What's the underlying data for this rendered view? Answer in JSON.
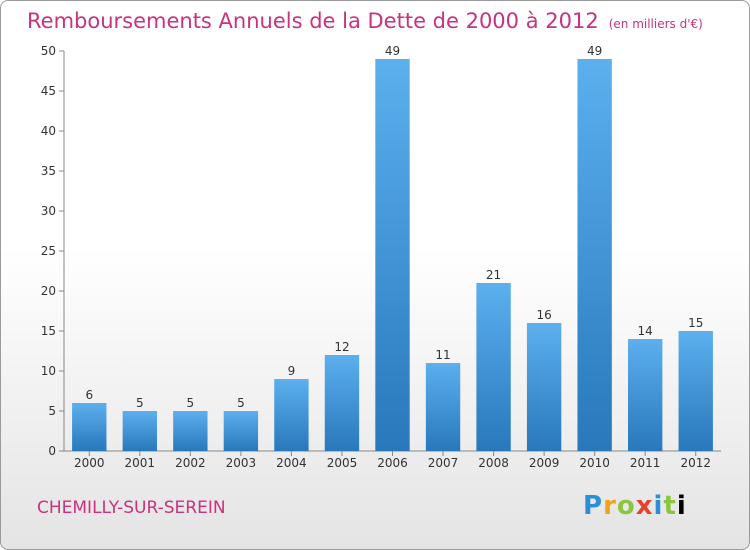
{
  "page": {
    "title": "Remboursements Annuels de la Dette de 2000 à 2012",
    "subtitle": "(en milliers d'€)",
    "city": "CHEMILLY-SUR-SEREIN",
    "logo": "Proxiti"
  },
  "chart_data": {
    "type": "bar",
    "title": "Remboursements Annuels de la Dette de 2000 à 2012",
    "subtitle": "(en milliers d'€)",
    "xlabel": "",
    "ylabel": "",
    "categories": [
      "2000",
      "2001",
      "2002",
      "2003",
      "2004",
      "2005",
      "2006",
      "2007",
      "2008",
      "2009",
      "2010",
      "2011",
      "2012"
    ],
    "values": [
      6,
      5,
      5,
      5,
      9,
      12,
      49,
      11,
      21,
      16,
      49,
      14,
      15
    ],
    "ylim": [
      0,
      50
    ],
    "yticks": [
      0,
      5,
      10,
      15,
      20,
      25,
      30,
      35,
      40,
      45,
      50
    ],
    "grid": false,
    "legend": "none",
    "colors": {
      "bar_light": "#5aacea",
      "bar_dark": "#2a7fc0",
      "title": "#c8327f"
    }
  }
}
